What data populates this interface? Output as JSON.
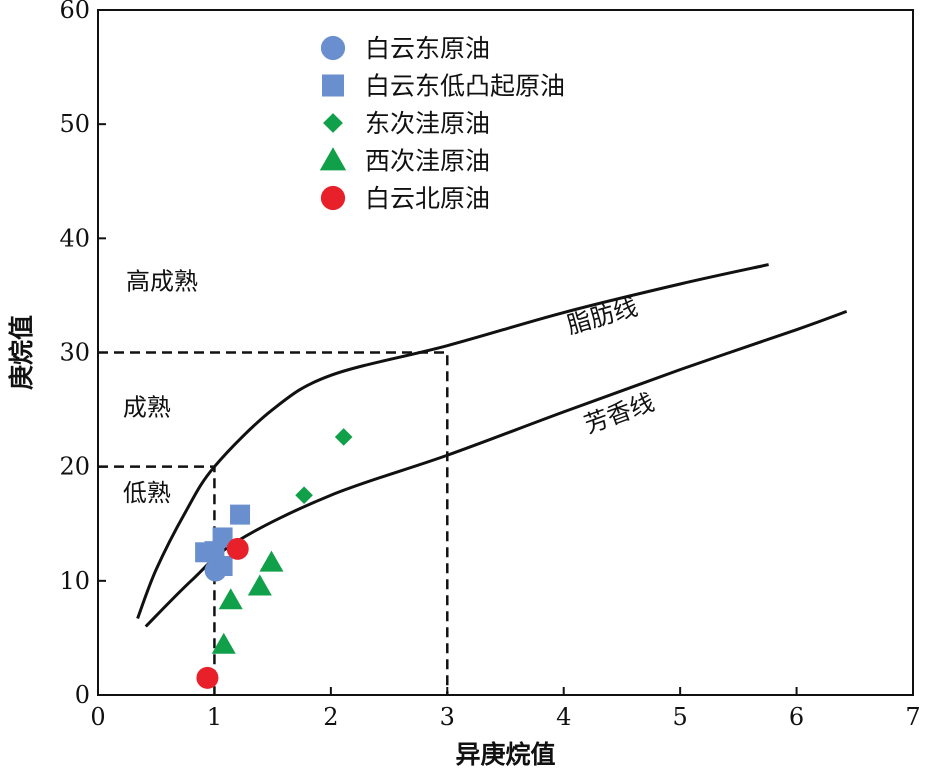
{
  "chart_data": {
    "type": "scatter",
    "xlabel": "异庚烷值",
    "ylabel": "庚烷值",
    "xlim": [
      0,
      7
    ],
    "ylim": [
      0,
      60
    ],
    "xticks": [
      0,
      1,
      2,
      3,
      4,
      5,
      6,
      7
    ],
    "yticks": [
      0,
      10,
      20,
      30,
      40,
      50,
      60
    ],
    "legend_position": "top-center",
    "series": [
      {
        "name": "白云东原油",
        "marker": "circle",
        "color": "#6a8fcf",
        "points": [
          [
            1.01,
            10.9
          ]
        ]
      },
      {
        "name": "白云东低凸起原油",
        "marker": "square",
        "color": "#6a8fcf",
        "points": [
          [
            1.22,
            15.8
          ],
          [
            0.92,
            12.5
          ],
          [
            1.07,
            13.8
          ],
          [
            1.07,
            11.3
          ],
          [
            1.0,
            12.6
          ]
        ]
      },
      {
        "name": "东次洼原油",
        "marker": "diamond",
        "color": "#10a04a",
        "points": [
          [
            1.77,
            17.5
          ],
          [
            2.11,
            22.6
          ]
        ]
      },
      {
        "name": "西次洼原油",
        "marker": "triangle",
        "color": "#10a04a",
        "points": [
          [
            1.49,
            11.6
          ],
          [
            1.39,
            9.5
          ],
          [
            1.14,
            8.3
          ],
          [
            1.08,
            4.4
          ]
        ]
      },
      {
        "name": "白云北原油",
        "marker": "circle",
        "color": "#e8202a",
        "points": [
          [
            1.2,
            12.8
          ],
          [
            0.94,
            1.5
          ]
        ]
      }
    ],
    "curves": [
      {
        "name": "脂肪线",
        "points": [
          [
            0.34,
            6.7
          ],
          [
            0.5,
            11
          ],
          [
            0.75,
            16
          ],
          [
            1.0,
            20
          ],
          [
            1.5,
            25
          ],
          [
            2.0,
            28
          ],
          [
            3.0,
            30.6
          ],
          [
            4.0,
            33.5
          ],
          [
            5.0,
            36
          ],
          [
            5.76,
            37.7
          ]
        ]
      },
      {
        "name": "芳香线",
        "points": [
          [
            0.41,
            6.0
          ],
          [
            0.8,
            10
          ],
          [
            1.2,
            13.5
          ],
          [
            2.0,
            17.5
          ],
          [
            3.0,
            21
          ],
          [
            4.0,
            24.8
          ],
          [
            5.0,
            28.5
          ],
          [
            6.0,
            32
          ],
          [
            6.43,
            33.6
          ]
        ]
      }
    ],
    "reference_lines": [
      {
        "points": [
          [
            0,
            30
          ],
          [
            3,
            30
          ],
          [
            3,
            0
          ]
        ]
      },
      {
        "points": [
          [
            0,
            20
          ],
          [
            1,
            20
          ],
          [
            1,
            0
          ]
        ]
      }
    ],
    "zone_labels": [
      {
        "text": "高成熟",
        "x": 0.55,
        "y": 35.5
      },
      {
        "text": "成熟",
        "x": 0.42,
        "y": 24.5
      },
      {
        "text": "低熟",
        "x": 0.42,
        "y": 17
      }
    ],
    "curve_labels": [
      {
        "text": "脂肪线",
        "x": 4.35,
        "y": 32.5,
        "rotate": -16
      },
      {
        "text": "芳香线",
        "x": 4.5,
        "y": 24,
        "rotate": -20
      }
    ]
  }
}
